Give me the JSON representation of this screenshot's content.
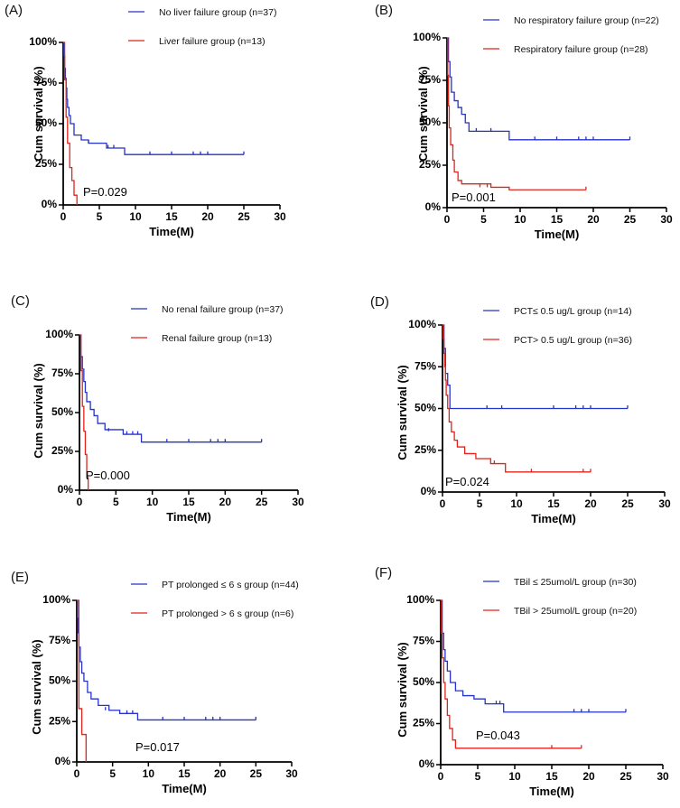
{
  "chart_data": [
    {
      "type": "line",
      "panel_label": "(A)",
      "xlabel": "Time(M)",
      "ylabel": "Cum survival (%)",
      "xlim": [
        0,
        30
      ],
      "ylim": [
        0,
        100
      ],
      "x_ticks": [
        "0",
        "5",
        "10",
        "15",
        "20",
        "25",
        "30"
      ],
      "y_ticks": [
        "0%",
        "25%",
        "50%",
        "75%",
        "100%"
      ],
      "annotation": "P=0.029",
      "series": [
        {
          "name": "No liver failure group (n=37)",
          "color": "#2433c8",
          "x": [
            0,
            0.1,
            0.2,
            0.3,
            0.4,
            0.5,
            0.6,
            0.8,
            1.0,
            1.5,
            2.5,
            3.5,
            6.0,
            8.5,
            25
          ],
          "y": [
            100,
            92,
            84,
            78,
            72,
            65,
            60,
            55,
            50,
            43,
            40,
            38,
            35,
            31,
            31
          ],
          "censored": [
            [
              3.5,
              38
            ],
            [
              6.2,
              35
            ],
            [
              7.0,
              35
            ],
            [
              12,
              31
            ],
            [
              15,
              31
            ],
            [
              18,
              31
            ],
            [
              19,
              31
            ],
            [
              20,
              31
            ],
            [
              25,
              31
            ]
          ]
        },
        {
          "name": "Liver failure group (n=13)",
          "color": "#e2231a",
          "x": [
            0,
            0.2,
            0.4,
            0.6,
            0.9,
            1.2,
            1.5,
            1.9
          ],
          "y": [
            100,
            77,
            54,
            38,
            23,
            15,
            6,
            0
          ],
          "censored": []
        }
      ]
    },
    {
      "type": "line",
      "panel_label": "(B)",
      "xlabel": "Time(M)",
      "ylabel": "Cum survival (%)",
      "xlim": [
        0,
        30
      ],
      "ylim": [
        0,
        100
      ],
      "x_ticks": [
        "0",
        "5",
        "10",
        "15",
        "20",
        "25",
        "30"
      ],
      "y_ticks": [
        "0%",
        "25%",
        "50%",
        "75%",
        "100%"
      ],
      "annotation": "P=0.001",
      "series": [
        {
          "name": "No respiratory failure group (n=22)",
          "color": "#2433c8",
          "x": [
            0,
            0.2,
            0.4,
            0.6,
            1.0,
            1.5,
            2.0,
            2.5,
            3.0,
            8.5,
            25
          ],
          "y": [
            100,
            86,
            77,
            68,
            63,
            59,
            55,
            50,
            45,
            40,
            40
          ],
          "censored": [
            [
              4,
              45
            ],
            [
              6,
              45
            ],
            [
              12,
              40
            ],
            [
              15,
              40
            ],
            [
              18,
              40
            ],
            [
              19,
              40
            ],
            [
              20,
              40
            ],
            [
              25,
              40
            ]
          ]
        },
        {
          "name": "Respiratory failure group (n=28)",
          "color": "#e2231a",
          "x": [
            0,
            0.1,
            0.2,
            0.3,
            0.5,
            0.8,
            1.0,
            1.5,
            2.0,
            6.0,
            8.5,
            19
          ],
          "y": [
            100,
            78,
            60,
            47,
            37,
            28,
            21,
            16,
            14,
            12,
            10.5,
            10.5
          ],
          "censored": [
            [
              4.5,
              12
            ],
            [
              5.5,
              12
            ],
            [
              19,
              10.5
            ]
          ]
        }
      ]
    },
    {
      "type": "line",
      "panel_label": "(C)",
      "xlabel": "Time(M)",
      "ylabel": "Cum survival (%)",
      "xlim": [
        0,
        30
      ],
      "ylim": [
        0,
        100
      ],
      "x_ticks": [
        "0",
        "5",
        "10",
        "15",
        "20",
        "25",
        "30"
      ],
      "y_ticks": [
        "0%",
        "25%",
        "50%",
        "75%",
        "100%"
      ],
      "annotation": "P=0.000",
      "series": [
        {
          "name": "No renal failure group (n=37)",
          "color": "#2433c8",
          "x": [
            0,
            0.2,
            0.4,
            0.6,
            0.8,
            1.0,
            1.5,
            2.0,
            2.5,
            3.5,
            6.0,
            8.5,
            25
          ],
          "y": [
            100,
            86,
            78,
            70,
            63,
            57,
            52,
            48,
            43,
            39,
            36,
            31,
            31
          ],
          "censored": [
            [
              4,
              38
            ],
            [
              6.5,
              36
            ],
            [
              7.3,
              36
            ],
            [
              8,
              36
            ],
            [
              12,
              31
            ],
            [
              15,
              31
            ],
            [
              18,
              31
            ],
            [
              19,
              31
            ],
            [
              20,
              31
            ],
            [
              25,
              31
            ]
          ]
        },
        {
          "name": "Renal failure group (n=13)",
          "color": "#e2231a",
          "x": [
            0,
            0.2,
            0.4,
            0.6,
            0.8,
            1.0,
            1.2
          ],
          "y": [
            100,
            77,
            54,
            38,
            23,
            8,
            0
          ],
          "censored": []
        }
      ]
    },
    {
      "type": "line",
      "panel_label": "(D)",
      "xlabel": "Time(M)",
      "ylabel": "Cum survival (%)",
      "xlim": [
        0,
        30
      ],
      "ylim": [
        0,
        100
      ],
      "x_ticks": [
        "0",
        "5",
        "10",
        "15",
        "20",
        "25",
        "30"
      ],
      "y_ticks": [
        "0%",
        "25%",
        "50%",
        "75%",
        "100%"
      ],
      "annotation": "P=0.024",
      "series": [
        {
          "name": "PCT≤ 0.5 ug/L group (n=14)",
          "color": "#2433c8",
          "x": [
            0,
            0.2,
            0.4,
            0.7,
            1.0,
            25
          ],
          "y": [
            100,
            86,
            71,
            64,
            50,
            50
          ],
          "censored": [
            [
              6,
              50
            ],
            [
              8,
              50
            ],
            [
              15,
              50
            ],
            [
              18,
              50
            ],
            [
              19,
              50
            ],
            [
              20,
              50
            ],
            [
              25,
              50
            ]
          ]
        },
        {
          "name": "PCT> 0.5 ug/L group (n=36)",
          "color": "#e2231a",
          "x": [
            0,
            0.1,
            0.2,
            0.3,
            0.4,
            0.5,
            0.7,
            0.9,
            1.2,
            1.6,
            2.0,
            3.0,
            4.5,
            6.5,
            8.5,
            20
          ],
          "y": [
            100,
            92,
            83,
            75,
            67,
            58,
            50,
            42,
            36,
            31,
            27,
            23,
            20,
            17,
            12,
            12
          ],
          "censored": [
            [
              7,
              17
            ],
            [
              12,
              12
            ],
            [
              19,
              12
            ],
            [
              20,
              12
            ]
          ]
        }
      ]
    },
    {
      "type": "line",
      "panel_label": "(E)",
      "xlabel": "Time(M)",
      "ylabel": "Cum survival (%)",
      "xlim": [
        0,
        30
      ],
      "ylim": [
        0,
        100
      ],
      "x_ticks": [
        "0",
        "5",
        "10",
        "15",
        "20",
        "25",
        "30"
      ],
      "y_ticks": [
        "0%",
        "25%",
        "50%",
        "75%",
        "100%"
      ],
      "annotation": "P=0.017",
      "series": [
        {
          "name": "PT prolonged ≤ 6 s group (n=44)",
          "color": "#2433c8",
          "x": [
            0,
            0.1,
            0.2,
            0.3,
            0.5,
            0.7,
            1.0,
            1.5,
            2.0,
            3.0,
            4.5,
            6.0,
            8.5,
            25
          ],
          "y": [
            100,
            89,
            80,
            71,
            62,
            55,
            50,
            43,
            39,
            35,
            32,
            30,
            26,
            26
          ],
          "censored": [
            [
              4,
              32
            ],
            [
              7,
              30
            ],
            [
              7.8,
              30
            ],
            [
              12,
              26
            ],
            [
              15,
              26
            ],
            [
              18,
              26
            ],
            [
              19,
              26
            ],
            [
              20,
              26
            ],
            [
              25,
              26
            ]
          ]
        },
        {
          "name": "PT prolonged > 6 s group (n=6)",
          "color": "#e2231a",
          "x": [
            0,
            0.3,
            0.7,
            1.3
          ],
          "y": [
            100,
            33,
            17,
            0
          ],
          "censored": []
        }
      ]
    },
    {
      "type": "line",
      "panel_label": "(F)",
      "xlabel": "Time(M)",
      "ylabel": "Cum survival (%)",
      "xlim": [
        0,
        30
      ],
      "ylim": [
        0,
        100
      ],
      "x_ticks": [
        "0",
        "5",
        "10",
        "15",
        "20",
        "25",
        "30"
      ],
      "y_ticks": [
        "0%",
        "25%",
        "50%",
        "75%",
        "100%"
      ],
      "annotation": "P=0.043",
      "series": [
        {
          "name": "TBil ≤ 25umol/L group (n=30)",
          "color": "#2433c8",
          "x": [
            0,
            0.2,
            0.4,
            0.6,
            0.9,
            1.3,
            2.0,
            3.0,
            4.5,
            6.0,
            8.5,
            25
          ],
          "y": [
            100,
            80,
            70,
            63,
            57,
            50,
            45,
            42,
            40,
            37,
            32,
            32
          ],
          "censored": [
            [
              7.5,
              37
            ],
            [
              8,
              37
            ],
            [
              18,
              32
            ],
            [
              19,
              32
            ],
            [
              20,
              32
            ],
            [
              25,
              32
            ]
          ]
        },
        {
          "name": "TBil > 25umol/L group (n=20)",
          "color": "#e2231a",
          "x": [
            0,
            0.1,
            0.2,
            0.4,
            0.6,
            0.9,
            1.2,
            1.6,
            2.0,
            19
          ],
          "y": [
            100,
            80,
            65,
            50,
            40,
            30,
            22,
            15,
            10,
            10
          ],
          "censored": [
            [
              15,
              10
            ],
            [
              19,
              10
            ]
          ]
        }
      ]
    }
  ]
}
